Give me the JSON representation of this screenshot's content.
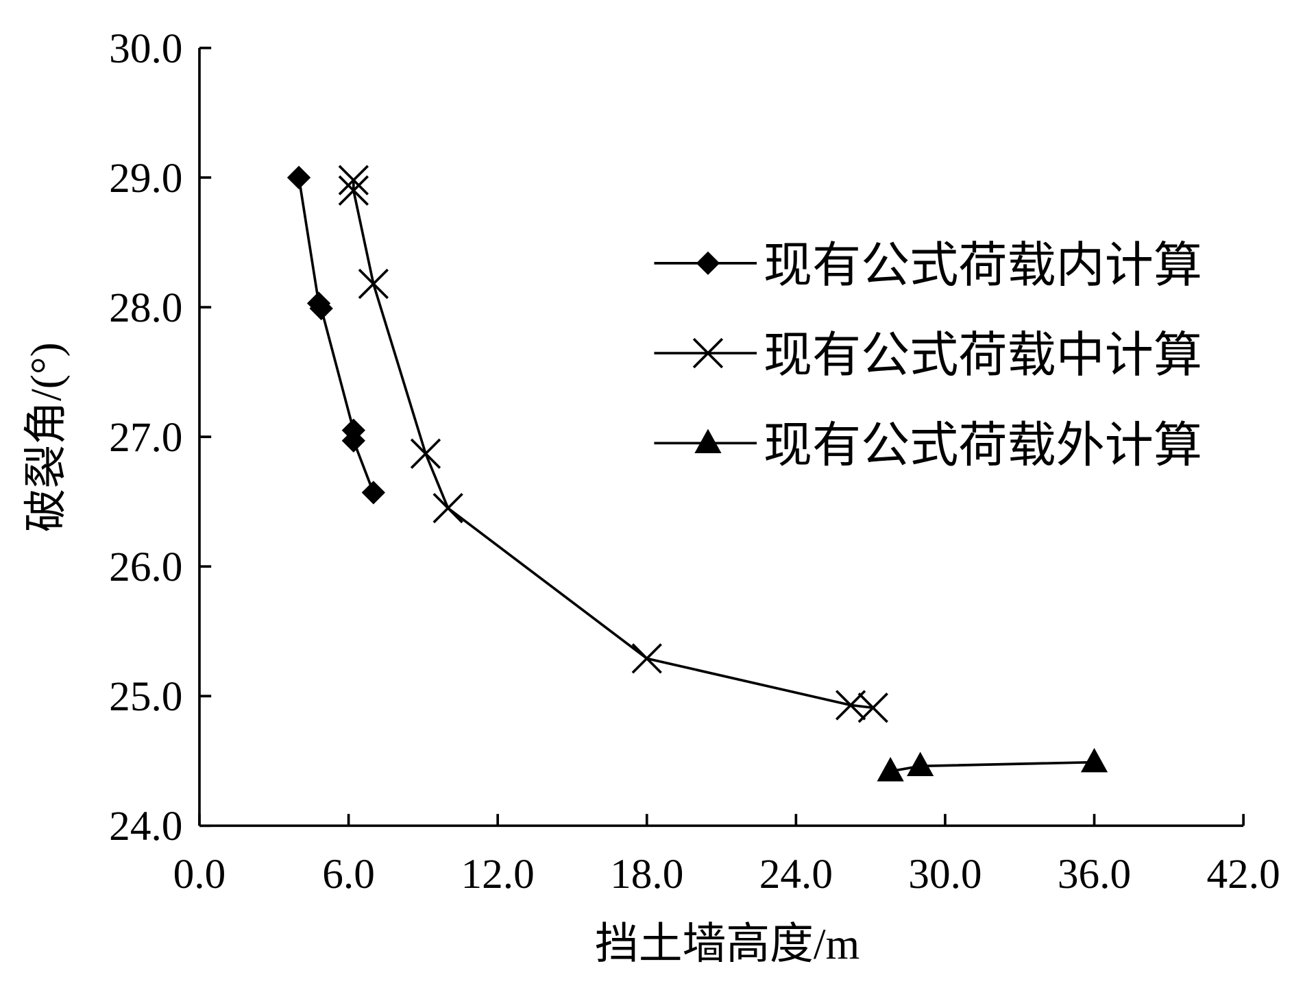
{
  "chart_data": {
    "type": "line",
    "title": "",
    "xlabel": "挡土墙高度/m",
    "ylabel": "破裂角/(°)",
    "xlim": [
      0,
      42
    ],
    "ylim": [
      24,
      30
    ],
    "xticks": [
      "0.0",
      "6.0",
      "12.0",
      "18.0",
      "24.0",
      "30.0",
      "36.0",
      "42.0"
    ],
    "yticks": [
      "24.0",
      "25.0",
      "26.0",
      "27.0",
      "28.0",
      "29.0",
      "30.0"
    ],
    "grid": false,
    "legend_position": "right",
    "series": [
      {
        "name": "现有公式荷载内计算",
        "marker": "diamond",
        "x": [
          4.0,
          4.8,
          4.9,
          6.2,
          6.2,
          7.0
        ],
        "y": [
          29.0,
          28.03,
          27.99,
          27.05,
          26.97,
          26.57
        ]
      },
      {
        "name": "现有公式荷载中计算",
        "marker": "x",
        "x": [
          6.2,
          6.2,
          7.0,
          9.1,
          10.0,
          18.0,
          26.2,
          27.1
        ],
        "y": [
          28.98,
          28.9,
          28.18,
          26.87,
          26.45,
          25.29,
          24.93,
          24.91
        ]
      },
      {
        "name": "现有公式荷载外计算",
        "marker": "triangle",
        "x": [
          27.8,
          29.0,
          36.0
        ],
        "y": [
          24.42,
          24.46,
          24.49
        ]
      }
    ]
  }
}
